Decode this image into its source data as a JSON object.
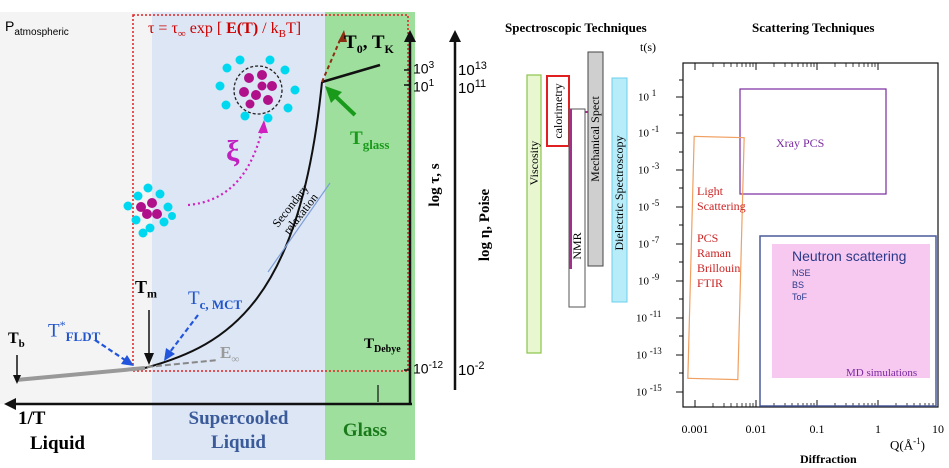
{
  "left": {
    "p_atmospheric": "P",
    "p_atmospheric_sub": "atmospheric",
    "tau_eq": {
      "a": "τ = τ",
      "inf": "∞",
      "b": " exp [ ",
      "bold": "E(T)",
      "c": " / k",
      "sub": "B",
      "d": "T]"
    },
    "t0tk": {
      "t": "T",
      "s0": "0",
      "c": ", T",
      "sk": "K"
    },
    "tglass": {
      "t": "T",
      "s": "glass"
    },
    "xi": "ξ",
    "tm": {
      "t": "T",
      "s": "m"
    },
    "tc": {
      "t": "T",
      "s": "c, MCT"
    },
    "tstar": {
      "t": "T",
      "sup": "*",
      "s": "FLDT"
    },
    "tb": {
      "t": "T",
      "s": "b"
    },
    "einf": {
      "e": "E",
      "s": "∞"
    },
    "tdebye": {
      "t": "T",
      "s": "Debye"
    },
    "secondary": "Secondary",
    "relaxation": "relaxation",
    "one_over_t": "1/T",
    "regions": {
      "liquid": "Liquid",
      "supercooled1": "Supercooled",
      "supercooled2": "Liquid",
      "glass": "Glass"
    },
    "log_tau": "log τ, s",
    "log_eta": "log η, Poise",
    "tau_ticks": [
      {
        "b": "10",
        "e": "3"
      },
      {
        "b": "10",
        "e": "1"
      },
      {
        "b": "10",
        "e": "-12"
      }
    ],
    "eta_ticks": [
      {
        "b": "10",
        "e": "13"
      },
      {
        "b": "10",
        "e": "11"
      },
      {
        "b": "10",
        "e": "-2"
      }
    ],
    "colors": {
      "liquid_bg": "#f4f4f4",
      "supercooled_bg": "#dfe8f6",
      "glass_bg": "#9ee09e",
      "dotted_red": "#e02020"
    }
  },
  "right": {
    "spectroscopic_title": "Spectroscopic Techniques",
    "scattering_title": "Scattering Techniques",
    "ts_label": "t(s)",
    "bars": {
      "viscosity": "Viscosity",
      "calorimetry": "calorimetry",
      "nmr": "NMR",
      "mech": "Mechanical Spect",
      "dielectric": "Dielectric Spectroscopy"
    },
    "y_ticks": [
      "1",
      "-1",
      "-3",
      "-5",
      "-7",
      "-9",
      "-11",
      "-13",
      "-15"
    ],
    "y_tick_base": "10",
    "x_ticks": [
      "0.001",
      "0.01",
      "0.1",
      "1",
      "10"
    ],
    "q_label": {
      "a": "Q(Å",
      "sup": "-1",
      "b": ")"
    },
    "diffraction": "Diffraction",
    "xray": "Xray PCS",
    "light": [
      "Light",
      "Scattering"
    ],
    "pcs": [
      "PCS",
      "Raman",
      "Brillouin",
      "FTIR"
    ],
    "neutron": {
      "title": "Neutron scattering",
      "items": [
        "NSE",
        "BS",
        "ToF"
      ]
    },
    "md": "MD simulations"
  }
}
